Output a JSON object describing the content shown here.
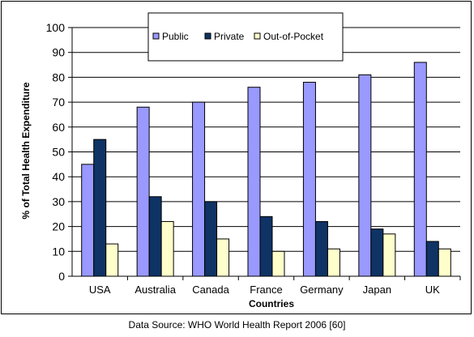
{
  "chart_data": {
    "type": "bar",
    "xlabel": "Countries",
    "ylabel": "% of Total Health Expenditure",
    "ylim": [
      0,
      100
    ],
    "yticks": [
      0,
      10,
      20,
      30,
      40,
      50,
      60,
      70,
      80,
      90,
      100
    ],
    "grid": true,
    "legend_position": "top",
    "categories": [
      "USA",
      "Australia",
      "Canada",
      "France",
      "Germany",
      "Japan",
      "UK"
    ],
    "series": [
      {
        "name": "Public",
        "color": "#9999ff",
        "values": [
          45,
          68,
          70,
          76,
          78,
          81,
          86
        ]
      },
      {
        "name": "Private",
        "color": "#0f3364",
        "values": [
          55,
          32,
          30,
          24,
          22,
          19,
          14
        ]
      },
      {
        "name": "Out-of-Pocket",
        "color": "#ffffcc",
        "values": [
          13,
          22,
          15,
          10,
          11,
          17,
          11
        ]
      }
    ]
  },
  "source_note": "Data Source: WHO World Health Report 2006 [60]"
}
